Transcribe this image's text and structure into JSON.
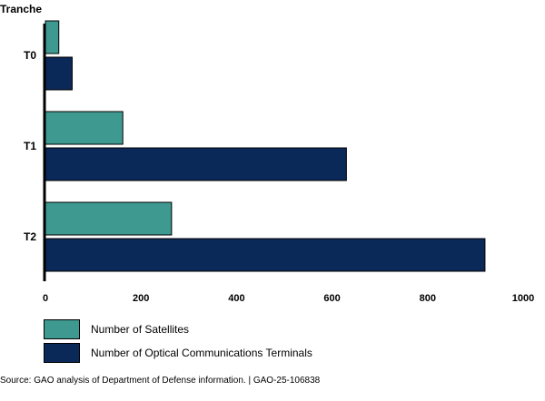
{
  "chart_data": {
    "type": "bar",
    "orientation": "horizontal",
    "ylabel": "Tranche",
    "categories": [
      "T0",
      "T1",
      "T2"
    ],
    "series": [
      {
        "name": "Number of Satellites",
        "color": "#3e9a90",
        "values": [
          28,
          162,
          264
        ]
      },
      {
        "name": "Number of Optical Communications Terminals",
        "color": "#0a2858",
        "values": [
          56,
          630,
          920
        ]
      }
    ],
    "xlim": [
      0,
      1000
    ],
    "xticks": [
      "0",
      "200",
      "400",
      "600",
      "800",
      "1000"
    ],
    "grid": false,
    "legend_position": "bottom-left"
  },
  "source": "Source: GAO analysis of Department of Defense information.  |  GAO-25-106838"
}
